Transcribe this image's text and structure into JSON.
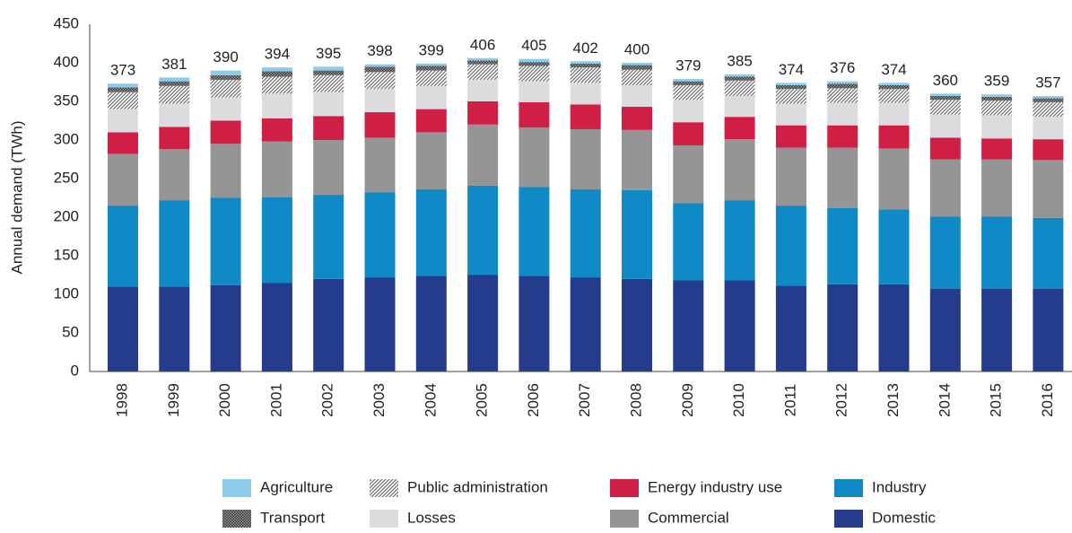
{
  "chart_data": {
    "type": "stacked-bar",
    "y_label": "Annual demand (TWh)",
    "ylim": [
      0,
      450
    ],
    "yticks": [
      0,
      50,
      100,
      150,
      200,
      250,
      300,
      350,
      400,
      450
    ],
    "grid": false,
    "categories": [
      "1998",
      "1999",
      "2000",
      "2001",
      "2002",
      "2003",
      "2004",
      "2005",
      "2006",
      "2007",
      "2008",
      "2009",
      "2010",
      "2011",
      "2012",
      "2013",
      "2014",
      "2015",
      "2016"
    ],
    "totals": [
      373,
      381,
      390,
      394,
      395,
      398,
      399,
      406,
      405,
      402,
      400,
      379,
      385,
      374,
      376,
      374,
      360,
      359,
      357
    ],
    "series": [
      {
        "name": "Domestic",
        "color": "#253b8c",
        "values": [
          110,
          110,
          112,
          115,
          120,
          122,
          124,
          125,
          124,
          122,
          120,
          118,
          118,
          111,
          113,
          113,
          107,
          107,
          107
        ]
      },
      {
        "name": "Industry",
        "color": "#0f8ac6",
        "values": [
          105,
          112,
          113,
          111,
          109,
          110,
          112,
          116,
          115,
          114,
          115,
          100,
          104,
          104,
          99,
          97,
          94,
          94,
          92
        ]
      },
      {
        "name": "Commercial",
        "color": "#959595",
        "values": [
          67,
          66,
          70,
          72,
          71,
          71,
          74,
          79,
          77,
          78,
          78,
          75,
          79,
          75,
          78,
          79,
          74,
          74,
          75
        ]
      },
      {
        "name": "Energy industry use",
        "color": "#d01f45",
        "values": [
          28,
          29,
          30,
          30,
          31,
          33,
          30,
          30,
          33,
          32,
          30,
          30,
          29,
          29,
          29,
          30,
          28,
          27,
          27
        ]
      },
      {
        "name": "Losses",
        "color": "#dcdcdf",
        "values": [
          30,
          30,
          30,
          32,
          31,
          30,
          30,
          28,
          27,
          28,
          28,
          29,
          27,
          28,
          29,
          29,
          30,
          30,
          29
        ]
      },
      {
        "name": "Public administration",
        "color": "#6e6e6e",
        "pattern": "diagonal",
        "values": [
          22,
          23,
          23,
          22,
          22,
          22,
          20,
          20,
          20,
          20,
          20,
          19,
          20,
          19,
          19,
          18,
          19,
          19,
          19
        ]
      },
      {
        "name": "Transport",
        "color": "#505050",
        "pattern": "checker",
        "values": [
          6,
          6,
          6,
          7,
          6,
          7,
          6,
          5,
          5,
          5,
          6,
          5,
          5,
          5,
          6,
          5,
          5,
          5,
          5
        ]
      },
      {
        "name": "Agriculture",
        "color": "#8ccbea",
        "values": [
          5,
          5,
          6,
          5,
          5,
          3,
          3,
          3,
          4,
          3,
          3,
          3,
          3,
          3,
          3,
          3,
          3,
          3,
          3
        ]
      }
    ]
  }
}
